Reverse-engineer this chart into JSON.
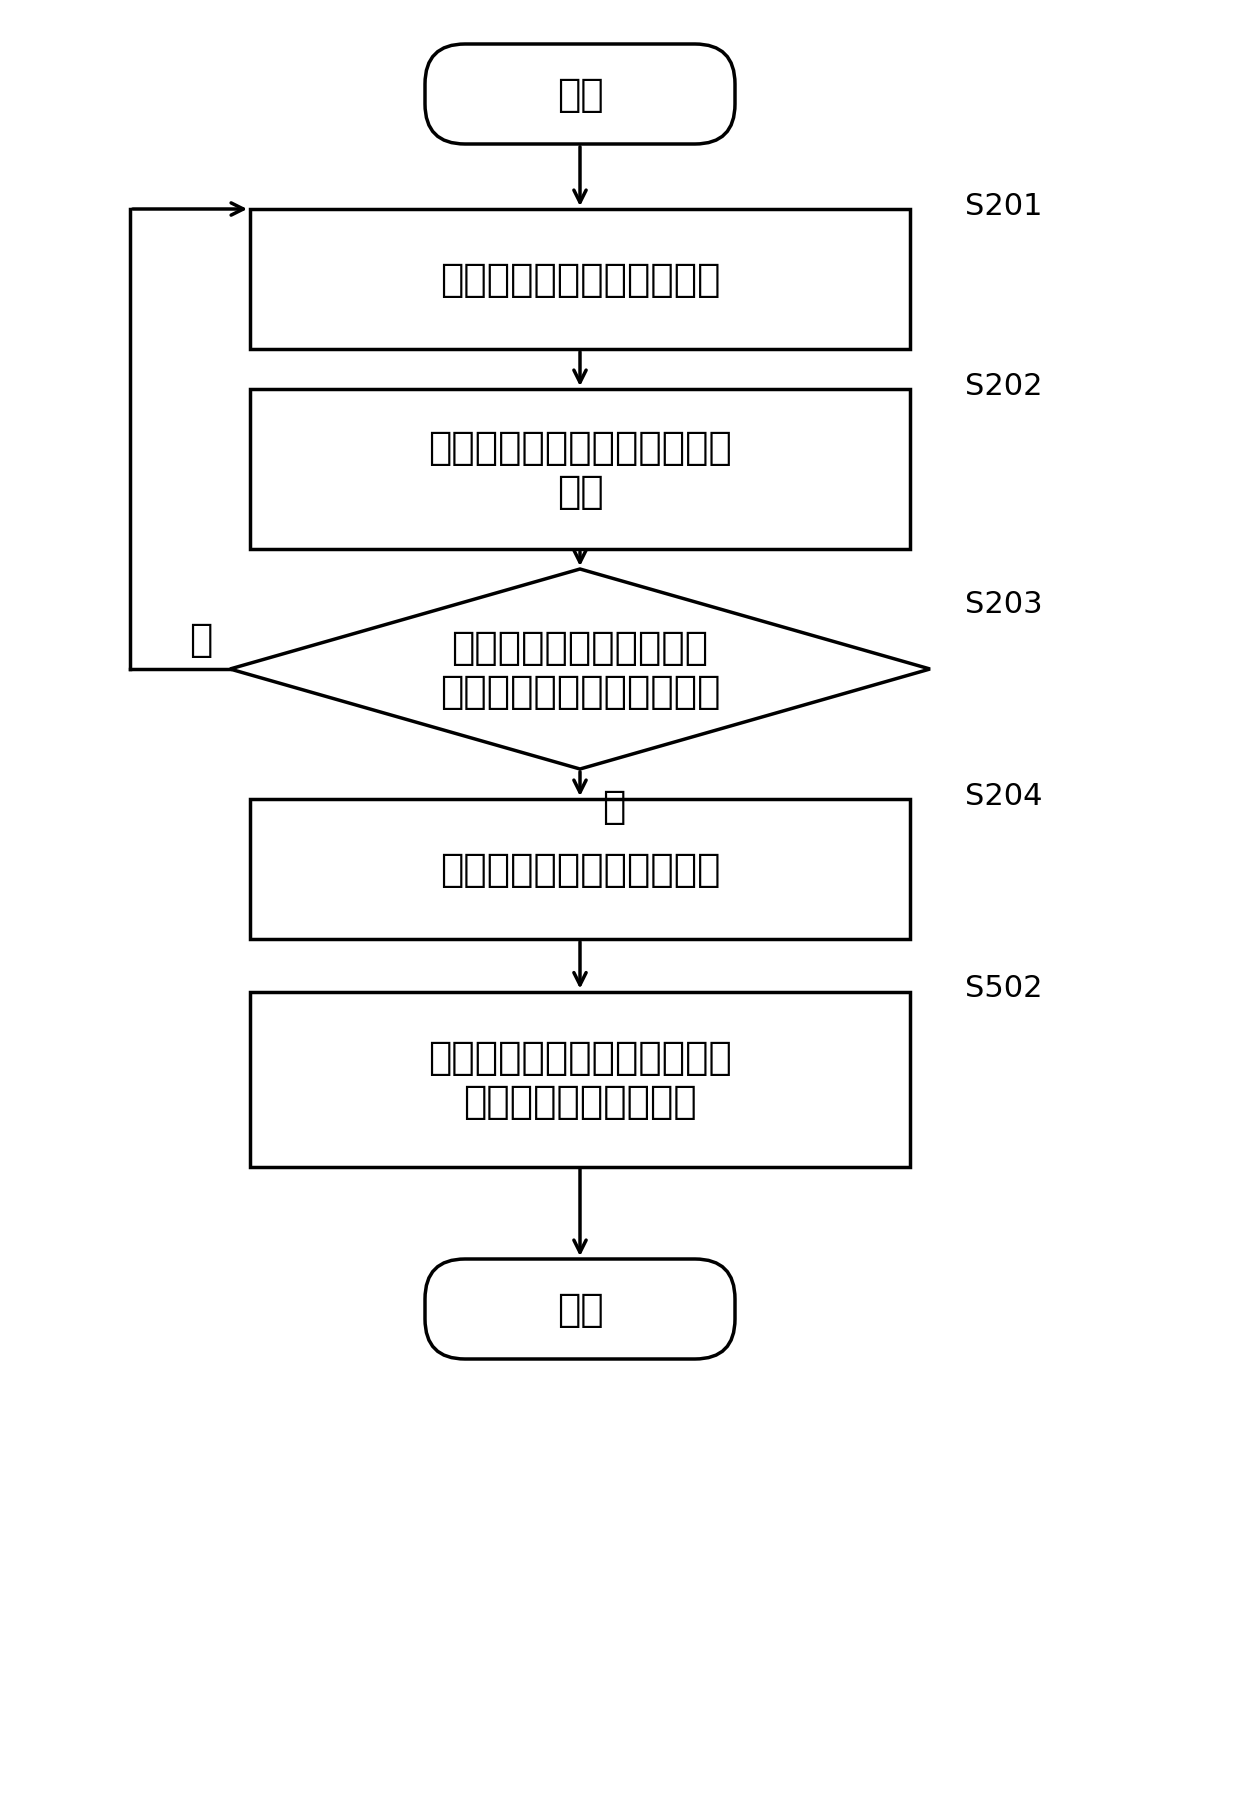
{
  "background_color": "#ffffff",
  "line_color": "#000000",
  "text_color": "#000000",
  "font_size_main": 28,
  "font_size_label": 22,
  "start_text": "开始",
  "end_text": "结束",
  "s201_text": "控制无刷直流电机开环启动",
  "s202_text": "实时检测无刷直流电机转子的\n转速",
  "s203_text": "判断无刷直流电机转子的\n转速是否大于第一预设阈値",
  "s204_text": "控制无刷直流电机闭环加速",
  "s502_text": "控制无刷直流电机转子的加速\n度不小于第二预设阈値",
  "yes_label": "是",
  "no_label": "否",
  "labels": [
    "S201",
    "S202",
    "S203",
    "S204",
    "S502"
  ],
  "lw": 2.5,
  "arrow_mutation_scale": 22
}
